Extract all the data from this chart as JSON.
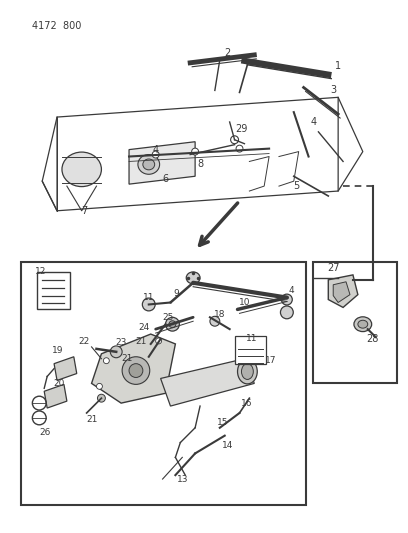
{
  "title": "4172  800",
  "bg_color": "#ffffff",
  "line_color": "#3a3a3a",
  "fig_width": 4.08,
  "fig_height": 5.33,
  "dpi": 100
}
